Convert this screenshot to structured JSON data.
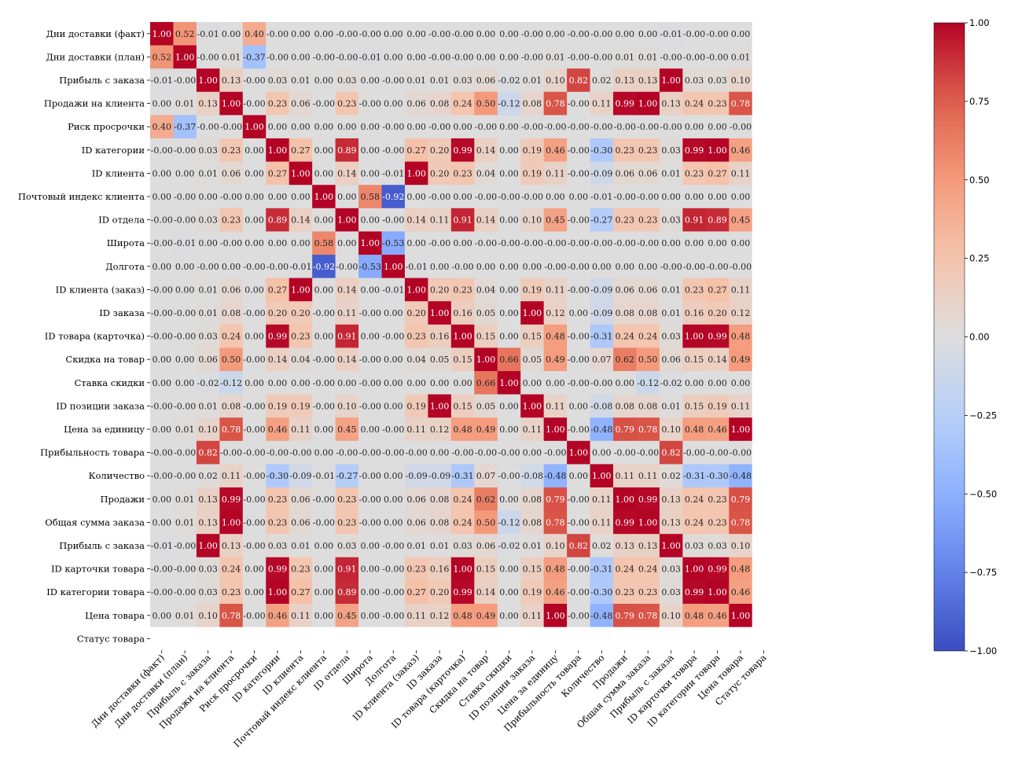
{
  "chart_data": {
    "type": "heatmap",
    "labels": [
      "Дни доставки (факт)",
      "Дни доставки (план)",
      "Прибыль с заказа",
      "Продажи на клиента",
      "Риск просрочки",
      "ID категории",
      "ID клиента",
      "Почтовый индекс клиента",
      "ID отдела",
      "Широта",
      "Долгота",
      "ID клиента (заказ)",
      "ID заказа",
      "ID товара (карточка)",
      "Скидка на товар",
      "Ставка скидки",
      "ID позиции заказа",
      "Цена за единицу",
      "Прибыльность товара",
      "Количество",
      "Продажи",
      "Общая сумма заказа",
      "Прибыль с заказа",
      "ID карточки товара",
      "ID категории товара",
      "Цена товара",
      "Статус товара"
    ],
    "values": [
      [
        "1.00",
        "0.52",
        "-0.01",
        "0.00",
        "0.40",
        "-0.00",
        "0.00",
        "0.00",
        "-0.00",
        "-0.00",
        "0.00",
        "0.00",
        "-0.00",
        "-0.00",
        "0.00",
        "0.00",
        "-0.00",
        "0.00",
        "-0.00",
        "-0.00",
        "0.00",
        "0.00",
        "-0.01",
        "-0.00",
        "-0.00",
        "0.00",
        null
      ],
      [
        "0.52",
        "1.00",
        "-0.00",
        "0.01",
        "-0.37",
        "-0.00",
        "0.00",
        "-0.00",
        "-0.00",
        "-0.01",
        "0.00",
        "0.00",
        "-0.00",
        "-0.00",
        "0.00",
        "0.00",
        "-0.00",
        "0.01",
        "-0.00",
        "-0.00",
        "0.01",
        "0.01",
        "-0.00",
        "-0.00",
        "-0.00",
        "0.01",
        null
      ],
      [
        "-0.01",
        "-0.00",
        "1.00",
        "0.13",
        "-0.00",
        "0.03",
        "0.01",
        "0.00",
        "0.03",
        "0.00",
        "-0.00",
        "0.01",
        "0.01",
        "0.03",
        "0.06",
        "-0.02",
        "0.01",
        "0.10",
        "0.82",
        "0.02",
        "0.13",
        "0.13",
        "1.00",
        "0.03",
        "0.03",
        "0.10",
        null
      ],
      [
        "0.00",
        "0.01",
        "0.13",
        "1.00",
        "-0.00",
        "0.23",
        "0.06",
        "-0.00",
        "0.23",
        "-0.00",
        "0.00",
        "0.06",
        "0.08",
        "0.24",
        "0.50",
        "-0.12",
        "0.08",
        "0.78",
        "-0.00",
        "0.11",
        "0.99",
        "1.00",
        "0.13",
        "0.24",
        "0.23",
        "0.78",
        null
      ],
      [
        "0.40",
        "-0.37",
        "-0.00",
        "-0.00",
        "1.00",
        "0.00",
        "0.00",
        "0.00",
        "0.00",
        "0.00",
        "-0.00",
        "0.00",
        "-0.00",
        "0.00",
        "-0.00",
        "0.00",
        "-0.00",
        "-0.00",
        "-0.00",
        "-0.00",
        "-0.00",
        "-0.00",
        "-0.00",
        "0.00",
        "0.00",
        "-0.00",
        null
      ],
      [
        "-0.00",
        "-0.00",
        "0.03",
        "0.23",
        "0.00",
        "1.00",
        "0.27",
        "0.00",
        "0.89",
        "0.00",
        "-0.00",
        "0.27",
        "0.20",
        "0.99",
        "0.14",
        "0.00",
        "0.19",
        "0.46",
        "-0.00",
        "-0.30",
        "0.23",
        "0.23",
        "0.03",
        "0.99",
        "1.00",
        "0.46",
        null
      ],
      [
        "0.00",
        "0.00",
        "0.01",
        "0.06",
        "0.00",
        "0.27",
        "1.00",
        "0.00",
        "0.14",
        "0.00",
        "-0.01",
        "1.00",
        "0.20",
        "0.23",
        "0.04",
        "0.00",
        "0.19",
        "0.11",
        "-0.00",
        "-0.09",
        "0.06",
        "0.06",
        "0.01",
        "0.23",
        "0.27",
        "0.11",
        null
      ],
      [
        "0.00",
        "-0.00",
        "0.00",
        "-0.00",
        "0.00",
        "0.00",
        "0.00",
        "1.00",
        "0.00",
        "0.58",
        "-0.92",
        "0.00",
        "-0.00",
        "0.00",
        "-0.00",
        "-0.00",
        "-0.00",
        "0.00",
        "0.00",
        "-0.01",
        "-0.00",
        "-0.00",
        "0.00",
        "0.00",
        "0.00",
        "0.00",
        null
      ],
      [
        "-0.00",
        "-0.00",
        "0.03",
        "0.23",
        "0.00",
        "0.89",
        "0.14",
        "0.00",
        "1.00",
        "0.00",
        "-0.00",
        "0.14",
        "0.11",
        "0.91",
        "0.14",
        "0.00",
        "0.10",
        "0.45",
        "-0.00",
        "-0.27",
        "0.23",
        "0.23",
        "0.03",
        "0.91",
        "0.89",
        "0.45",
        null
      ],
      [
        "-0.00",
        "-0.01",
        "0.00",
        "-0.00",
        "0.00",
        "0.00",
        "0.00",
        "0.58",
        "0.00",
        "1.00",
        "-0.53",
        "0.00",
        "-0.00",
        "0.00",
        "-0.00",
        "-0.00",
        "-0.00",
        "-0.00",
        "-0.00",
        "-0.00",
        "-0.00",
        "-0.00",
        "0.00",
        "0.00",
        "0.00",
        "0.00",
        null
      ],
      [
        "0.00",
        "0.00",
        "-0.00",
        "0.00",
        "-0.00",
        "-0.00",
        "-0.01",
        "-0.92",
        "-0.00",
        "-0.53",
        "1.00",
        "-0.01",
        "0.00",
        "-0.00",
        "0.00",
        "0.00",
        "0.00",
        "-0.00",
        "-0.00",
        "0.00",
        "0.00",
        "0.00",
        "-0.00",
        "-0.00",
        "-0.00",
        "-0.00",
        null
      ],
      [
        "-0.00",
        "0.00",
        "0.01",
        "0.06",
        "0.00",
        "0.27",
        "1.00",
        "0.00",
        "0.14",
        "0.00",
        "-0.01",
        "1.00",
        "0.20",
        "0.23",
        "0.04",
        "0.00",
        "0.19",
        "0.11",
        "-0.00",
        "-0.09",
        "0.06",
        "0.06",
        "0.01",
        "0.23",
        "0.27",
        "0.11",
        null
      ],
      [
        "-0.00",
        "-0.00",
        "0.01",
        "0.08",
        "-0.00",
        "0.20",
        "0.20",
        "-0.00",
        "0.11",
        "-0.00",
        "0.00",
        "0.20",
        "1.00",
        "0.16",
        "0.05",
        "0.00",
        "1.00",
        "0.12",
        "0.00",
        "-0.09",
        "0.08",
        "0.08",
        "0.01",
        "0.16",
        "0.20",
        "0.12",
        null
      ],
      [
        "-0.00",
        "-0.00",
        "0.03",
        "0.24",
        "0.00",
        "0.99",
        "0.23",
        "0.00",
        "0.91",
        "0.00",
        "-0.00",
        "0.23",
        "0.16",
        "1.00",
        "0.15",
        "0.00",
        "0.15",
        "0.48",
        "-0.00",
        "-0.31",
        "0.24",
        "0.24",
        "0.03",
        "1.00",
        "0.99",
        "0.48",
        null
      ],
      [
        "0.00",
        "0.00",
        "0.06",
        "0.50",
        "-0.00",
        "0.14",
        "0.04",
        "-0.00",
        "0.14",
        "-0.00",
        "0.00",
        "0.04",
        "0.05",
        "0.15",
        "1.00",
        "0.66",
        "0.05",
        "0.49",
        "-0.00",
        "0.07",
        "0.62",
        "0.50",
        "0.06",
        "0.15",
        "0.14",
        "0.49",
        null
      ],
      [
        "0.00",
        "0.00",
        "-0.02",
        "-0.12",
        "0.00",
        "0.00",
        "0.00",
        "-0.00",
        "0.00",
        "-0.00",
        "0.00",
        "0.00",
        "0.00",
        "0.00",
        "0.66",
        "1.00",
        "0.00",
        "0.00",
        "-0.00",
        "-0.00",
        "0.00",
        "-0.12",
        "-0.02",
        "0.00",
        "0.00",
        "0.00",
        null
      ],
      [
        "-0.00",
        "-0.00",
        "0.01",
        "0.08",
        "-0.00",
        "0.19",
        "0.19",
        "-0.00",
        "0.10",
        "-0.00",
        "0.00",
        "0.19",
        "1.00",
        "0.15",
        "0.05",
        "0.00",
        "1.00",
        "0.11",
        "0.00",
        "-0.08",
        "0.08",
        "0.08",
        "0.01",
        "0.15",
        "0.19",
        "0.11",
        null
      ],
      [
        "0.00",
        "0.01",
        "0.10",
        "0.78",
        "-0.00",
        "0.46",
        "0.11",
        "0.00",
        "0.45",
        "0.00",
        "-0.00",
        "0.11",
        "0.12",
        "0.48",
        "0.49",
        "0.00",
        "0.11",
        "1.00",
        "-0.00",
        "-0.48",
        "0.79",
        "0.78",
        "0.10",
        "0.48",
        "0.46",
        "1.00",
        null
      ],
      [
        "-0.00",
        "-0.00",
        "0.82",
        "-0.00",
        "-0.00",
        "-0.00",
        "-0.00",
        "0.00",
        "-0.00",
        "-0.00",
        "-0.00",
        "-0.00",
        "0.00",
        "-0.00",
        "-0.00",
        "-0.00",
        "0.00",
        "-0.00",
        "1.00",
        "0.00",
        "-0.00",
        "-0.00",
        "0.82",
        "-0.00",
        "-0.00",
        "-0.00",
        null
      ],
      [
        "-0.00",
        "-0.00",
        "0.02",
        "0.11",
        "-0.00",
        "-0.30",
        "-0.09",
        "-0.01",
        "-0.27",
        "-0.00",
        "0.00",
        "-0.09",
        "-0.09",
        "-0.31",
        "0.07",
        "-0.00",
        "-0.08",
        "-0.48",
        "0.00",
        "1.00",
        "0.11",
        "0.11",
        "0.02",
        "-0.31",
        "-0.30",
        "-0.48",
        null
      ],
      [
        "0.00",
        "0.01",
        "0.13",
        "0.99",
        "-0.00",
        "0.23",
        "0.06",
        "-0.00",
        "0.23",
        "-0.00",
        "0.00",
        "0.06",
        "0.08",
        "0.24",
        "0.62",
        "0.00",
        "0.08",
        "0.79",
        "-0.00",
        "0.11",
        "1.00",
        "0.99",
        "0.13",
        "0.24",
        "0.23",
        "0.79",
        null
      ],
      [
        "0.00",
        "0.01",
        "0.13",
        "1.00",
        "-0.00",
        "0.23",
        "0.06",
        "-0.00",
        "0.23",
        "-0.00",
        "0.00",
        "0.06",
        "0.08",
        "0.24",
        "0.50",
        "-0.12",
        "0.08",
        "0.78",
        "-0.00",
        "0.11",
        "0.99",
        "1.00",
        "0.13",
        "0.24",
        "0.23",
        "0.78",
        null
      ],
      [
        "-0.01",
        "-0.00",
        "1.00",
        "0.13",
        "-0.00",
        "0.03",
        "0.01",
        "0.00",
        "0.03",
        "0.00",
        "-0.00",
        "0.01",
        "0.01",
        "0.03",
        "0.06",
        "-0.02",
        "0.01",
        "0.10",
        "0.82",
        "0.02",
        "0.13",
        "0.13",
        "1.00",
        "0.03",
        "0.03",
        "0.10",
        null
      ],
      [
        "-0.00",
        "-0.00",
        "0.03",
        "0.24",
        "0.00",
        "0.99",
        "0.23",
        "0.00",
        "0.91",
        "0.00",
        "-0.00",
        "0.23",
        "0.16",
        "1.00",
        "0.15",
        "0.00",
        "0.15",
        "0.48",
        "-0.00",
        "-0.31",
        "0.24",
        "0.24",
        "0.03",
        "1.00",
        "0.99",
        "0.48",
        null
      ],
      [
        "-0.00",
        "-0.00",
        "0.03",
        "0.23",
        "0.00",
        "1.00",
        "0.27",
        "0.00",
        "0.89",
        "0.00",
        "-0.00",
        "0.27",
        "0.20",
        "0.99",
        "0.14",
        "0.00",
        "0.19",
        "0.46",
        "-0.00",
        "-0.30",
        "0.23",
        "0.23",
        "0.03",
        "0.99",
        "1.00",
        "0.46",
        null
      ],
      [
        "0.00",
        "0.01",
        "0.10",
        "0.78",
        "-0.00",
        "0.46",
        "0.11",
        "0.00",
        "0.45",
        "0.00",
        "-0.00",
        "0.11",
        "0.12",
        "0.48",
        "0.49",
        "0.00",
        "0.11",
        "1.00",
        "-0.00",
        "-0.48",
        "0.79",
        "0.78",
        "0.10",
        "0.48",
        "0.46",
        "1.00",
        null
      ],
      [
        null,
        null,
        null,
        null,
        null,
        null,
        null,
        null,
        null,
        null,
        null,
        null,
        null,
        null,
        null,
        null,
        null,
        null,
        null,
        null,
        null,
        null,
        null,
        null,
        null,
        null,
        null
      ]
    ],
    "vmin": -1.0,
    "vmax": 1.0,
    "colormap": "coolwarm",
    "nan_color": "#dcdcdc",
    "colorbar_ticks": [
      "1.00",
      "0.75",
      "0.50",
      "0.25",
      "0.00",
      "−0.25",
      "−0.50",
      "−0.75",
      "−1.00"
    ],
    "colorbar_tick_values": [
      1.0,
      0.75,
      0.5,
      0.25,
      0.0,
      -0.25,
      -0.5,
      -0.75,
      -1.0
    ],
    "title": "",
    "xlabel": "",
    "ylabel": ""
  }
}
